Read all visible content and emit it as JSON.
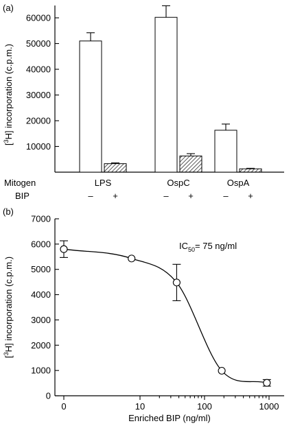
{
  "chart_data": [
    {
      "type": "bar",
      "panel_label": "(a)",
      "ylabel_pre": "[",
      "ylabel_sup": "3",
      "ylabel_post": "H] incorporation (c.p.m.)",
      "ylim": [
        0,
        60000
      ],
      "yticks": [
        "10000",
        "20000",
        "30000",
        "40000",
        "50000",
        "60000"
      ],
      "row_labels": {
        "mitogen": "Mitogen",
        "bip": "BIP"
      },
      "categories": [
        "LPS",
        "OspC",
        "OspA"
      ],
      "bip_signs": [
        "–",
        "+"
      ],
      "series": [
        {
          "bip": "–",
          "style": "open",
          "values": [
            51000,
            60200,
            16300
          ],
          "errors": [
            3200,
            4500,
            2400
          ]
        },
        {
          "bip": "+",
          "style": "hatched",
          "values": [
            3300,
            6300,
            1300
          ],
          "errors": [
            300,
            900,
            200
          ]
        }
      ]
    },
    {
      "type": "scatter",
      "panel_label": "(b)",
      "ylabel_pre": "[",
      "ylabel_sup": "3",
      "ylabel_post": "H] incorporation (c.p.m.)",
      "xlabel": "Enriched BIP (ng/ml)",
      "x_scale": "log",
      "xticks": [
        "0",
        "10",
        "100",
        "1000"
      ],
      "ylim": [
        0,
        7000
      ],
      "yticks": [
        "0",
        "1000",
        "2000",
        "3000",
        "4000",
        "5000",
        "6000",
        "7000"
      ],
      "points": [
        {
          "x": 0,
          "y": 5800,
          "err": 330
        },
        {
          "x": 7.4,
          "y": 5430,
          "err": 0
        },
        {
          "x": 37,
          "y": 4480,
          "err": 720
        },
        {
          "x": 185,
          "y": 990,
          "err": 0
        },
        {
          "x": 925,
          "y": 510,
          "err": 130
        }
      ],
      "annotation": {
        "pre": "IC",
        "sub": "50",
        "post": "= 75 ng/ml"
      }
    }
  ]
}
